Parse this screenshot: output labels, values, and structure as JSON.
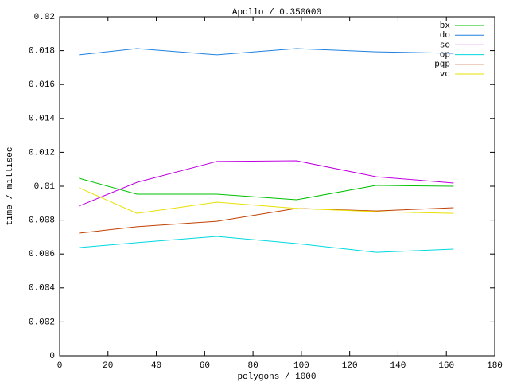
{
  "chart_data": {
    "type": "line",
    "title": "Apollo / 0.350000",
    "x_label": "polygons / 1000",
    "y_label": "time / millisec",
    "x": [
      8,
      32,
      65,
      98,
      131,
      163
    ],
    "series": [
      {
        "name": "bx",
        "color": "#00c000",
        "values": [
          0.01047,
          0.00953,
          0.00953,
          0.0092,
          0.01005,
          0.01
        ]
      },
      {
        "name": "do",
        "color": "#1e80e0",
        "values": [
          0.01775,
          0.01812,
          0.01775,
          0.01812,
          0.01793,
          0.01784
        ]
      },
      {
        "name": "so",
        "color": "#c000e0",
        "values": [
          0.00883,
          0.01023,
          0.01146,
          0.0115,
          0.01056,
          0.01019
        ]
      },
      {
        "name": "op",
        "color": "#00d8e0",
        "values": [
          0.00638,
          0.00667,
          0.00704,
          0.00662,
          0.0061,
          0.00629
        ]
      },
      {
        "name": "pqp",
        "color": "#c04000",
        "values": [
          0.00723,
          0.00761,
          0.00793,
          0.00869,
          0.00854,
          0.00873
        ]
      },
      {
        "name": "vc",
        "color": "#e8e000",
        "values": [
          0.00991,
          0.0084,
          0.00906,
          0.00869,
          0.0085,
          0.0084
        ]
      }
    ],
    "xlim": [
      0,
      180
    ],
    "xticks": [
      0,
      20,
      40,
      60,
      80,
      100,
      120,
      140,
      160,
      180
    ],
    "ylim": [
      0,
      0.02
    ],
    "yticks": [
      0,
      0.002,
      0.004,
      0.006,
      0.008,
      0.01,
      0.012,
      0.014,
      0.016,
      0.018,
      0.02
    ],
    "legend": "top-right",
    "grid": false
  }
}
